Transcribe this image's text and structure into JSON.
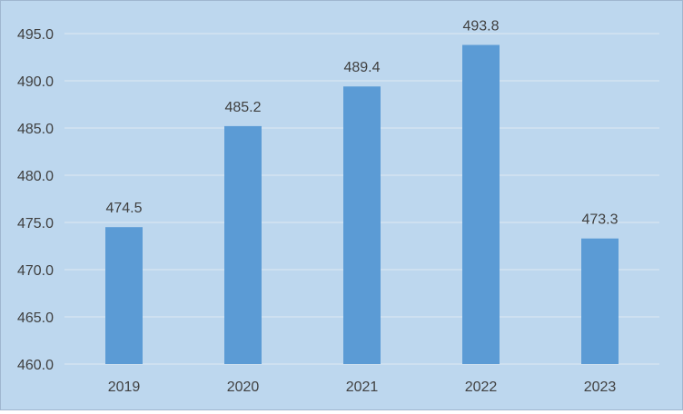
{
  "colors": {
    "background": "#bdd7ee",
    "bar": "#5b9bd5",
    "gridline": "#d9e5f1",
    "text": "#404040"
  },
  "chart_data": {
    "type": "bar",
    "title": "",
    "xlabel": "",
    "ylabel": "",
    "categories": [
      "2019",
      "2020",
      "2021",
      "2022",
      "2023"
    ],
    "values": [
      474.5,
      485.2,
      489.4,
      493.8,
      473.3
    ],
    "data_labels": [
      "474.5",
      "485.2",
      "489.4",
      "493.8",
      "473.3"
    ],
    "ylim": [
      460,
      495
    ],
    "y_ticks": [
      460,
      465,
      470,
      475,
      480,
      485,
      490,
      495
    ],
    "y_tick_labels": [
      "460.0",
      "465.0",
      "470.0",
      "475.0",
      "480.0",
      "485.0",
      "490.0",
      "495.0"
    ],
    "grid": true,
    "legend": "none"
  }
}
